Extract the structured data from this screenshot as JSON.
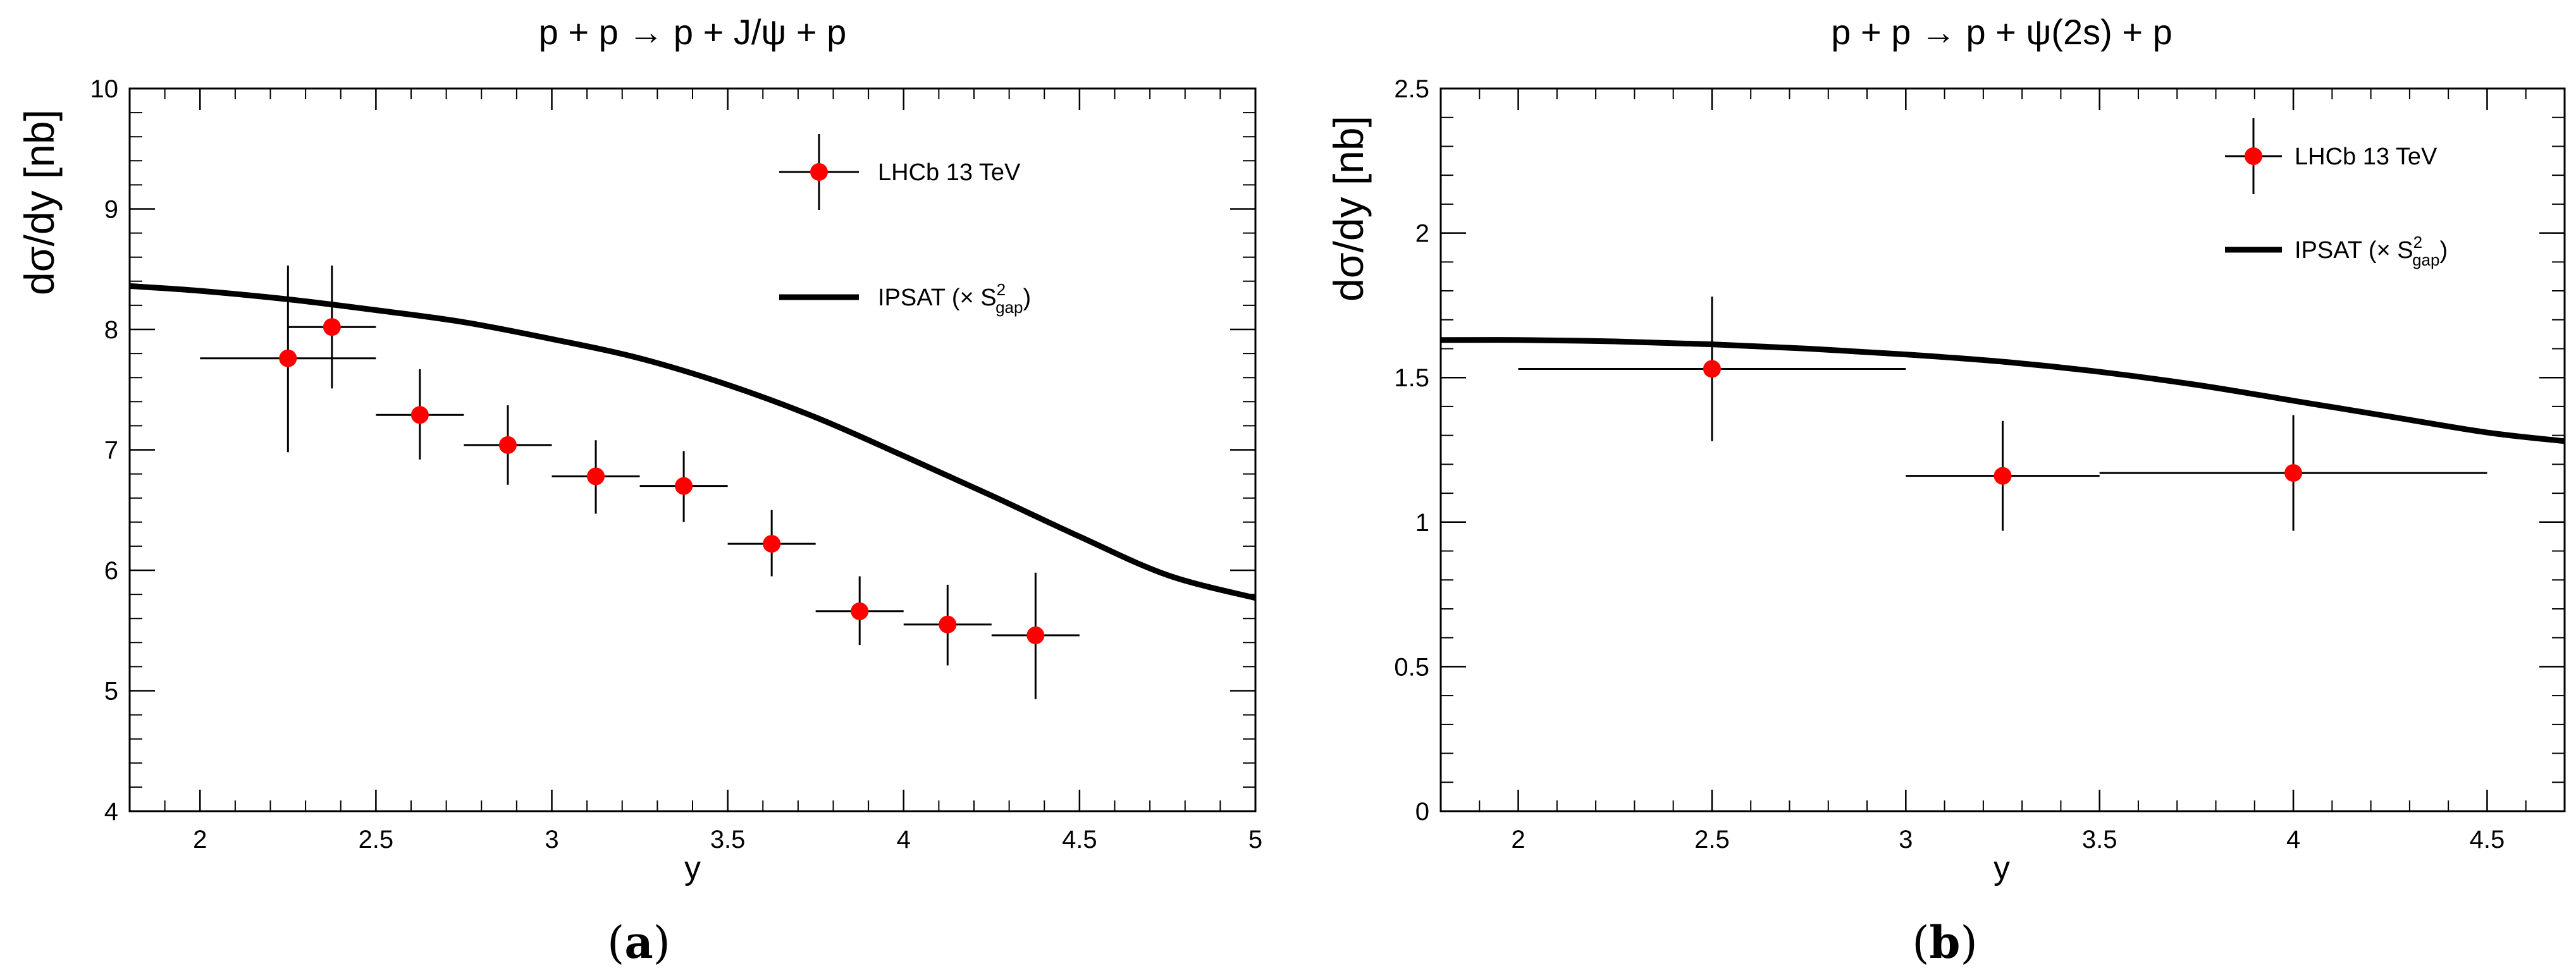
{
  "chart_data": [
    {
      "type": "scatter",
      "title": "p + p → p + J/ψ + p",
      "xlabel": "y",
      "ylabel": "dσ/dy [nb]",
      "xlim": [
        1.8,
        5.0
      ],
      "ylim": [
        4,
        10
      ],
      "xticks": [
        "2",
        "2.5",
        "3",
        "3.5",
        "4",
        "4.5",
        "5"
      ],
      "yticks": [
        "4",
        "5",
        "6",
        "7",
        "8",
        "9",
        "10"
      ],
      "caption": "a",
      "series": [
        {
          "name": "LHCb 13 TeV",
          "kind": "points",
          "color": "#ff0000",
          "x": [
            2.25,
            2.375,
            2.625,
            2.875,
            3.125,
            3.375,
            3.625,
            3.875,
            4.125,
            4.375
          ],
          "y": [
            7.76,
            8.02,
            7.29,
            7.04,
            6.78,
            6.7,
            6.22,
            5.66,
            5.55,
            5.46
          ],
          "xerr_low": [
            0.25,
            0.125,
            0.125,
            0.125,
            0.125,
            0.125,
            0.125,
            0.125,
            0.125,
            0.125
          ],
          "xerr_high": [
            0.25,
            0.125,
            0.125,
            0.125,
            0.125,
            0.125,
            0.125,
            0.125,
            0.125,
            0.125
          ],
          "yerr_low": [
            0.78,
            0.51,
            0.37,
            0.33,
            0.31,
            0.3,
            0.27,
            0.28,
            0.34,
            0.53
          ],
          "yerr_high": [
            0.77,
            0.51,
            0.38,
            0.33,
            0.3,
            0.29,
            0.28,
            0.29,
            0.33,
            0.52
          ]
        },
        {
          "name": "IPSAT",
          "kind": "line",
          "color": "#000000",
          "x": [
            1.8,
            2.0,
            2.25,
            2.5,
            2.75,
            3.0,
            3.25,
            3.5,
            3.75,
            4.0,
            4.25,
            4.5,
            4.75,
            5.0
          ],
          "y": [
            8.36,
            8.32,
            8.25,
            8.16,
            8.06,
            7.92,
            7.76,
            7.54,
            7.27,
            6.95,
            6.62,
            6.28,
            5.96,
            5.77
          ]
        }
      ],
      "legend": [
        {
          "label": "LHCb 13 TeV",
          "marker": "point"
        },
        {
          "label": "IPSAT (× S",
          "sup": "2",
          "sub": "gap",
          "suffix": ")",
          "marker": "line"
        }
      ]
    },
    {
      "type": "scatter",
      "title": "p + p → p + ψ(2s) + p",
      "xlabel": "y",
      "ylabel": "dσ/dy [nb]",
      "xlim": [
        1.8,
        4.7
      ],
      "ylim": [
        0,
        2.5
      ],
      "xticks": [
        "2",
        "2.5",
        "3",
        "3.5",
        "4",
        "4.5"
      ],
      "yticks": [
        "0",
        "0.5",
        "1",
        "1.5",
        "2",
        "2.5"
      ],
      "caption": "b",
      "series": [
        {
          "name": "LHCb 13 TeV",
          "kind": "points",
          "color": "#ff0000",
          "x": [
            2.5,
            3.25,
            4.0
          ],
          "y": [
            1.53,
            1.16,
            1.17
          ],
          "xerr_low": [
            0.5,
            0.25,
            0.5
          ],
          "xerr_high": [
            0.5,
            0.25,
            0.5
          ],
          "yerr_low": [
            0.25,
            0.19,
            0.2
          ],
          "yerr_high": [
            0.25,
            0.19,
            0.2
          ]
        },
        {
          "name": "IPSAT",
          "kind": "line",
          "color": "#000000",
          "x": [
            1.8,
            2.0,
            2.25,
            2.5,
            2.75,
            3.0,
            3.25,
            3.5,
            3.75,
            4.0,
            4.25,
            4.5,
            4.7
          ],
          "y": [
            1.63,
            1.63,
            1.625,
            1.615,
            1.6,
            1.58,
            1.555,
            1.52,
            1.475,
            1.42,
            1.365,
            1.31,
            1.28
          ]
        }
      ],
      "legend": [
        {
          "label": "LHCb 13 TeV",
          "marker": "point"
        },
        {
          "label": "IPSAT (× S",
          "sup": "2",
          "sub": "gap",
          "suffix": ")",
          "marker": "line"
        }
      ]
    }
  ]
}
